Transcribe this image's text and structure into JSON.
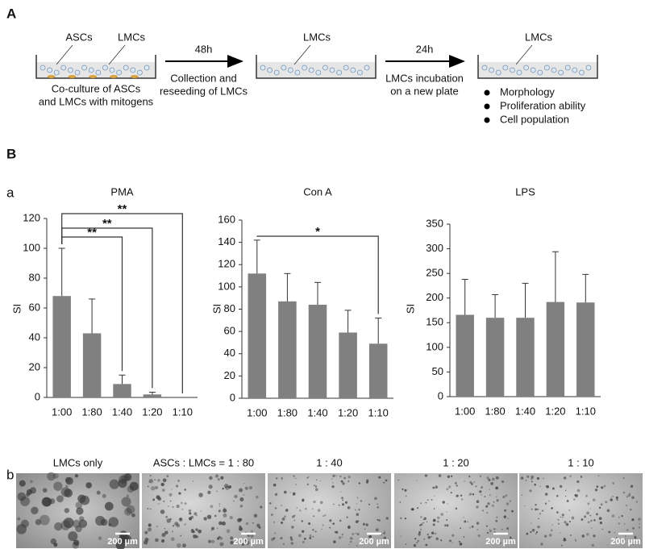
{
  "panel_labels": {
    "A": "A",
    "B": "B",
    "a": "a",
    "b": "b"
  },
  "diagram": {
    "dish1": {
      "labels": [
        "ASCs",
        "LMCs"
      ],
      "caption": [
        "Co-culture of ASCs",
        "and LMCs with mitogens"
      ]
    },
    "arrow1": {
      "time": "48h",
      "caption": [
        "Collection and",
        "reseeding of LMCs"
      ]
    },
    "dish2": {
      "labels": [
        "LMCs"
      ]
    },
    "arrow2": {
      "time": "24h",
      "caption": [
        "LMCs incubation",
        "on a new plate"
      ]
    },
    "dish3": {
      "labels": [
        "LMCs"
      ],
      "bullets": [
        "Morphology",
        "Proliferation ability",
        "Cell population"
      ]
    }
  },
  "chart_data": [
    {
      "type": "bar",
      "title": "PMA",
      "ylabel": "SI",
      "categories": [
        "1:00",
        "1:80",
        "1:40",
        "1:20",
        "1:10"
      ],
      "values": [
        68,
        43,
        9,
        2,
        0
      ],
      "errors": [
        32,
        23,
        6,
        1.5,
        0
      ],
      "color": "#808080",
      "ylim": [
        0,
        120
      ],
      "yticks": [
        0,
        20,
        40,
        60,
        80,
        100,
        120
      ],
      "annotations": [
        {
          "label": "**",
          "from": "1:00",
          "to": "1:10"
        },
        {
          "label": "**",
          "from": "1:00",
          "to": "1:20"
        },
        {
          "label": "**",
          "from": "1:00",
          "to": "1:40"
        }
      ]
    },
    {
      "type": "bar",
      "title": "Con A",
      "ylabel": "SI",
      "categories": [
        "1:00",
        "1:80",
        "1:40",
        "1:20",
        "1:10"
      ],
      "values": [
        112,
        87,
        84,
        59,
        49
      ],
      "errors": [
        30,
        25,
        20,
        20,
        23
      ],
      "color": "#808080",
      "ylim": [
        0,
        160
      ],
      "yticks": [
        0,
        20,
        40,
        60,
        80,
        100,
        120,
        140,
        160
      ],
      "annotations": [
        {
          "label": "*",
          "from": "1:00",
          "to": "1:10"
        }
      ]
    },
    {
      "type": "bar",
      "title": "LPS",
      "ylabel": "SI",
      "categories": [
        "1:00",
        "1:80",
        "1:40",
        "1:20",
        "1:10"
      ],
      "values": [
        166,
        160,
        160,
        192,
        191
      ],
      "errors": [
        72,
        47,
        70,
        102,
        57
      ],
      "color": "#808080",
      "ylim": [
        0,
        350
      ],
      "yticks": [
        0,
        50,
        100,
        150,
        200,
        250,
        300,
        350
      ]
    }
  ],
  "images": [
    {
      "caption": "LMCs only",
      "scale": "200 µm"
    },
    {
      "caption": "ASCs : LMCs = 1 : 80",
      "scale": "200 µm"
    },
    {
      "caption": "1 : 40",
      "scale": "200 µm"
    },
    {
      "caption": "1 : 20",
      "scale": "200 µm"
    },
    {
      "caption": "1 : 10",
      "scale": "200 µm"
    }
  ]
}
